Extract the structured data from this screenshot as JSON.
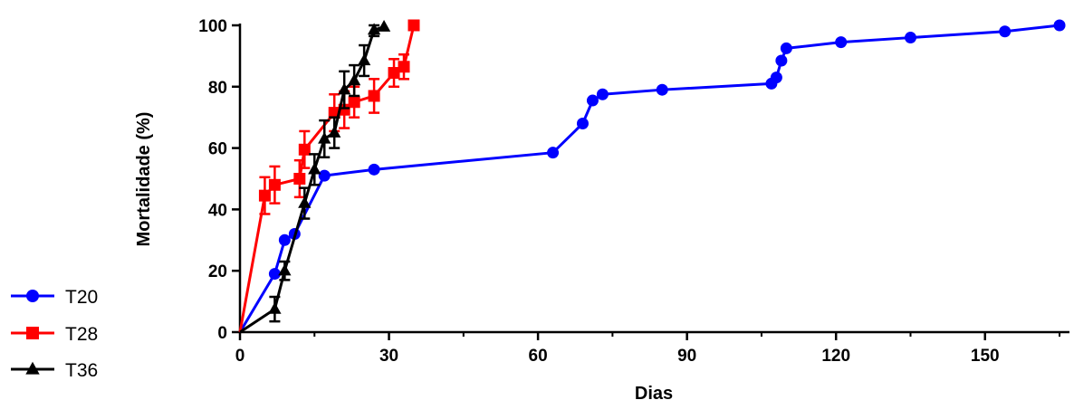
{
  "chart_data": {
    "type": "line",
    "xlabel": "Dias",
    "ylabel": "Mortalidade (%)",
    "xlim": [
      0,
      167
    ],
    "ylim": [
      0,
      100
    ],
    "xticks": [
      0,
      30,
      60,
      90,
      120,
      150
    ],
    "yticks": [
      0,
      20,
      40,
      60,
      80,
      100
    ],
    "legend_position": "bottom-left",
    "series": [
      {
        "name": "T20",
        "color": "#0000ff",
        "marker": "circle",
        "x": [
          0,
          7,
          9,
          11,
          17,
          27,
          63,
          69,
          71,
          73,
          85,
          107,
          108,
          109,
          110,
          121,
          135,
          154,
          165
        ],
        "y": [
          0,
          19,
          30,
          32,
          51,
          53,
          58.5,
          68,
          75.5,
          77.5,
          79,
          81,
          83,
          88.5,
          92.5,
          94.5,
          96,
          98,
          100
        ],
        "err": []
      },
      {
        "name": "T28",
        "color": "#ff0000",
        "marker": "square",
        "x": [
          0,
          5,
          7,
          12,
          13,
          19,
          21,
          23,
          27,
          31,
          33,
          35
        ],
        "y": [
          0,
          44.5,
          48,
          50,
          59.5,
          71.5,
          72.5,
          75,
          77,
          84.5,
          86.5,
          100
        ],
        "err": [
          0,
          6,
          6,
          6,
          6,
          6,
          6,
          5,
          5.5,
          4.5,
          4,
          0
        ]
      },
      {
        "name": "T36",
        "color": "#000000",
        "marker": "triangle",
        "x": [
          0,
          7,
          9,
          13,
          15,
          17,
          19,
          21,
          23,
          25,
          27,
          29
        ],
        "y": [
          0,
          7.5,
          20,
          42,
          53,
          63,
          65,
          79,
          82,
          88.5,
          98.5,
          99.5
        ],
        "err": [
          0,
          4,
          3,
          5,
          5,
          6,
          5,
          6,
          5,
          5,
          2,
          0
        ]
      }
    ]
  }
}
